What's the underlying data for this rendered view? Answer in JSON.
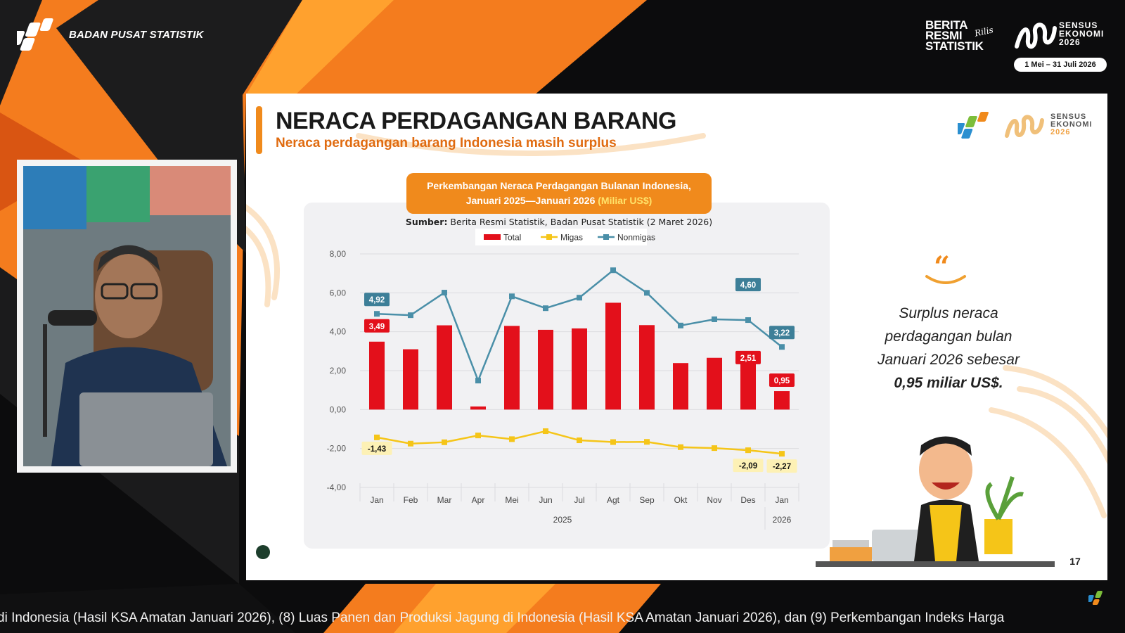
{
  "header": {
    "org_name": "BADAN PUSAT STATISTIK",
    "brs_logo_lines": [
      "BERITA",
      "RESMI",
      "STATISTIK"
    ],
    "brs_logo_script": "Rilis",
    "census_logo_lines": [
      "SENSUS",
      "EKONOMI",
      "2026"
    ],
    "census_dates": "1 Mei – 31 Juli 2026"
  },
  "slide": {
    "title": "NERACA PERDAGANGAN BARANG",
    "subtitle": "Neraca perdagangan barang Indonesia masih surplus",
    "logo_lines": [
      "SENSUS",
      "EKONOMI",
      "2026"
    ],
    "chart_title_line1": "Perkembangan Neraca Perdagangan Bulanan Indonesia,",
    "chart_title_line2": "Januari 2025—Januari 2026",
    "chart_title_unit": "(Miliar US$)",
    "source_label": "Sumber:",
    "source_text": "Berita Resmi Statistik, Badan Pusat Statistik (2 Maret 2026)",
    "quote_line1": "Surplus neraca",
    "quote_line2": "perdagangan bulan",
    "quote_line3": "Januari 2026 sebesar",
    "quote_highlight": "0,95 miliar US$.",
    "page_number": "17"
  },
  "chart_data": {
    "type": "bar",
    "categories": [
      "Jan",
      "Feb",
      "Mar",
      "Apr",
      "Mei",
      "Jun",
      "Jul",
      "Agt",
      "Sep",
      "Okt",
      "Nov",
      "Des",
      "Jan"
    ],
    "year_groups": [
      {
        "label": "2025",
        "from": 0,
        "to": 11
      },
      {
        "label": "2026",
        "from": 12,
        "to": 12
      }
    ],
    "ylim": [
      -4,
      8
    ],
    "yticks": [
      8,
      6,
      4,
      2,
      0,
      -2,
      -4
    ],
    "ytick_labels": [
      "8,00",
      "6,00",
      "4,00",
      "2,00",
      "0,00",
      "-2,00",
      "-4,00"
    ],
    "legend": "top",
    "grid": true,
    "series": [
      {
        "name": "Total",
        "kind": "bar",
        "color": "#e3101b",
        "values": [
          3.49,
          3.1,
          4.33,
          0.16,
          4.3,
          4.1,
          4.17,
          5.49,
          4.34,
          2.39,
          2.66,
          2.51,
          0.95
        ]
      },
      {
        "name": "Migas",
        "kind": "line",
        "color": "#f5c518",
        "values": [
          -1.43,
          -1.75,
          -1.68,
          -1.33,
          -1.52,
          -1.11,
          -1.58,
          -1.67,
          -1.66,
          -1.93,
          -1.98,
          -2.09,
          -2.27
        ]
      },
      {
        "name": "Nonmigas",
        "kind": "line",
        "color": "#4a8fa8",
        "values": [
          4.92,
          4.85,
          6.01,
          1.49,
          5.82,
          5.21,
          5.75,
          7.16,
          6.0,
          4.32,
          4.64,
          4.6,
          3.22
        ]
      }
    ],
    "data_labels": [
      {
        "series": 0,
        "index": 0,
        "text": "3,49"
      },
      {
        "series": 0,
        "index": 11,
        "text": "2,51"
      },
      {
        "series": 0,
        "index": 12,
        "text": "0,95"
      },
      {
        "series": 1,
        "index": 0,
        "text": "-1,43"
      },
      {
        "series": 1,
        "index": 11,
        "text": "-2,09"
      },
      {
        "series": 1,
        "index": 12,
        "text": "-2,27"
      },
      {
        "series": 2,
        "index": 0,
        "text": "4,92"
      },
      {
        "series": 2,
        "index": 11,
        "text": "4,60"
      },
      {
        "series": 2,
        "index": 12,
        "text": "3,22"
      }
    ]
  },
  "ticker": {
    "text": "di Indonesia (Hasil KSA Amatan Januari 2026), (8) Luas Panen dan Produksi Jagung di Indonesia (Hasil KSA Amatan Januari 2026), dan (9) Perkembangan Indeks Harga"
  },
  "colors": {
    "accent_orange": "#f08a1c",
    "bar_red": "#e3101b",
    "migas_yellow": "#f5c518",
    "nonmigas_teal": "#4a8fa8"
  },
  "icons": {
    "bps_logo": "bps-logo-icon",
    "quote": "quote-icon",
    "pen": "pen-icon"
  }
}
